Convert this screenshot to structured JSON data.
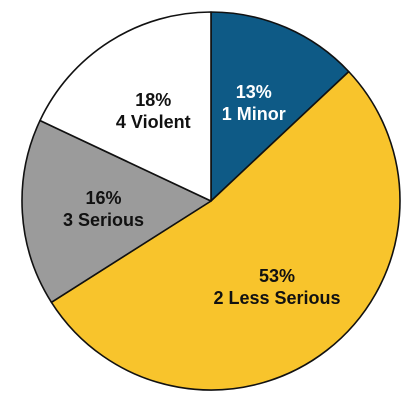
{
  "chart_data": {
    "type": "pie",
    "start_angle_deg": 0,
    "direction": "clockwise",
    "slices": [
      {
        "label": "1 Minor",
        "percent_text": "13%",
        "value": 13,
        "color": "#0e5a86",
        "text_color": "#ffffff"
      },
      {
        "label": "2 Less Serious",
        "percent_text": "53%",
        "value": 53,
        "color": "#f8c42c",
        "text_color": "#111111"
      },
      {
        "label": "3 Serious",
        "percent_text": "16%",
        "value": 16,
        "color": "#9b9b9b",
        "text_color": "#111111"
      },
      {
        "label": "4 Violent",
        "percent_text": "18%",
        "value": 18,
        "color": "#ffffff",
        "text_color": "#111111"
      }
    ],
    "legend": "none"
  }
}
